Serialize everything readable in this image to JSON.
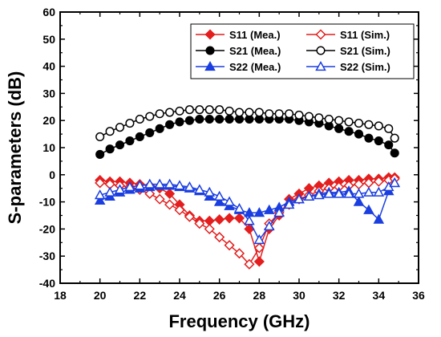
{
  "chart_data": {
    "type": "line",
    "xlabel": "Frequency (GHz)",
    "ylabel": "S-parameters (dB)",
    "xlim": [
      18,
      36
    ],
    "ylim": [
      -40,
      60
    ],
    "x_ticks": [
      "18",
      "20",
      "22",
      "24",
      "26",
      "28",
      "30",
      "32",
      "34",
      "36"
    ],
    "y_ticks": [
      "-40",
      "-30",
      "-20",
      "-10",
      "0",
      "10",
      "20",
      "30",
      "40",
      "50",
      "60"
    ],
    "legend_position": "top-right",
    "grid": false,
    "series": [
      {
        "name": "S11 (Mea.)",
        "color": "#e41e1e",
        "marker": "diamond",
        "filled": true,
        "points": [
          [
            20,
            -2
          ],
          [
            20.5,
            -2.5
          ],
          [
            21,
            -2.5
          ],
          [
            21.5,
            -3
          ],
          [
            22,
            -3.5
          ],
          [
            22.5,
            -4
          ],
          [
            23,
            -5
          ],
          [
            23.5,
            -7
          ],
          [
            24,
            -11
          ],
          [
            24.5,
            -15
          ],
          [
            25,
            -17
          ],
          [
            25.5,
            -17
          ],
          [
            26,
            -16.5
          ],
          [
            26.5,
            -16
          ],
          [
            27,
            -16
          ],
          [
            27.5,
            -20
          ],
          [
            28,
            -32
          ],
          [
            28.5,
            -20
          ],
          [
            29,
            -15
          ],
          [
            29.5,
            -9
          ],
          [
            30,
            -7
          ],
          [
            30.5,
            -5
          ],
          [
            31,
            -4
          ],
          [
            31.5,
            -3
          ],
          [
            32,
            -2.5
          ],
          [
            32.5,
            -2
          ],
          [
            33,
            -2
          ],
          [
            33.5,
            -1.5
          ],
          [
            34,
            -1.5
          ],
          [
            34.5,
            -1
          ],
          [
            34.8,
            -1
          ]
        ]
      },
      {
        "name": "S11 (Sim.)",
        "color": "#e41e1e",
        "marker": "diamond",
        "filled": false,
        "points": [
          [
            20,
            -3
          ],
          [
            20.5,
            -3.5
          ],
          [
            21,
            -4
          ],
          [
            21.5,
            -4.5
          ],
          [
            22,
            -5.5
          ],
          [
            22.5,
            -7
          ],
          [
            23,
            -9
          ],
          [
            23.5,
            -11
          ],
          [
            24,
            -13
          ],
          [
            24.5,
            -15.5
          ],
          [
            25,
            -18
          ],
          [
            25.5,
            -20
          ],
          [
            26,
            -23
          ],
          [
            26.5,
            -26
          ],
          [
            27,
            -29
          ],
          [
            27.5,
            -33
          ],
          [
            28,
            -27
          ],
          [
            28.5,
            -18
          ],
          [
            29,
            -14
          ],
          [
            29.5,
            -11
          ],
          [
            30,
            -9
          ],
          [
            30.5,
            -7.5
          ],
          [
            31,
            -6
          ],
          [
            31.5,
            -5
          ],
          [
            32,
            -4.5
          ],
          [
            32.5,
            -4
          ],
          [
            33,
            -3.5
          ],
          [
            33.5,
            -3
          ],
          [
            34,
            -2.5
          ],
          [
            34.5,
            -2
          ],
          [
            34.8,
            -1.5
          ]
        ]
      },
      {
        "name": "S21 (Mea.)",
        "color": "#000000",
        "marker": "circle",
        "filled": true,
        "points": [
          [
            20,
            7.5
          ],
          [
            20.5,
            9.5
          ],
          [
            21,
            11
          ],
          [
            21.5,
            12.5
          ],
          [
            22,
            14
          ],
          [
            22.5,
            15.5
          ],
          [
            23,
            17
          ],
          [
            23.5,
            18.5
          ],
          [
            24,
            19.5
          ],
          [
            24.5,
            20
          ],
          [
            25,
            20.5
          ],
          [
            25.5,
            20.5
          ],
          [
            26,
            20.5
          ],
          [
            26.5,
            20.5
          ],
          [
            27,
            20.5
          ],
          [
            27.5,
            20.5
          ],
          [
            28,
            20.5
          ],
          [
            28.5,
            20.5
          ],
          [
            29,
            20.5
          ],
          [
            29.5,
            20.5
          ],
          [
            30,
            20
          ],
          [
            30.5,
            19.5
          ],
          [
            31,
            19
          ],
          [
            31.5,
            18
          ],
          [
            32,
            17
          ],
          [
            32.5,
            16
          ],
          [
            33,
            15
          ],
          [
            33.5,
            13.5
          ],
          [
            34,
            12.5
          ],
          [
            34.5,
            11
          ],
          [
            34.8,
            8
          ]
        ]
      },
      {
        "name": "S21 (Sim.)",
        "color": "#000000",
        "marker": "circle",
        "filled": false,
        "points": [
          [
            20,
            14
          ],
          [
            20.5,
            16
          ],
          [
            21,
            17.5
          ],
          [
            21.5,
            19
          ],
          [
            22,
            20.5
          ],
          [
            22.5,
            21.5
          ],
          [
            23,
            22.5
          ],
          [
            23.5,
            23
          ],
          [
            24,
            23.5
          ],
          [
            24.5,
            24
          ],
          [
            25,
            24
          ],
          [
            25.5,
            24
          ],
          [
            26,
            24
          ],
          [
            26.5,
            23.5
          ],
          [
            27,
            23
          ],
          [
            27.5,
            23
          ],
          [
            28,
            23
          ],
          [
            28.5,
            22.5
          ],
          [
            29,
            22.5
          ],
          [
            29.5,
            22.5
          ],
          [
            30,
            22
          ],
          [
            30.5,
            21.5
          ],
          [
            31,
            21
          ],
          [
            31.5,
            20.5
          ],
          [
            32,
            20
          ],
          [
            32.5,
            19.5
          ],
          [
            33,
            19
          ],
          [
            33.5,
            18.5
          ],
          [
            34,
            18
          ],
          [
            34.5,
            17
          ],
          [
            34.8,
            13.5
          ]
        ]
      },
      {
        "name": "S22 (Mea.)",
        "color": "#1a3ee0",
        "marker": "triangle",
        "filled": true,
        "points": [
          [
            20,
            -9.5
          ],
          [
            20.5,
            -8
          ],
          [
            21,
            -6.5
          ],
          [
            21.5,
            -5.5
          ],
          [
            22,
            -5
          ],
          [
            22.5,
            -4.5
          ],
          [
            23,
            -4
          ],
          [
            23.5,
            -4
          ],
          [
            24,
            -4.5
          ],
          [
            24.5,
            -5
          ],
          [
            25,
            -6
          ],
          [
            25.5,
            -8
          ],
          [
            26,
            -10
          ],
          [
            26.5,
            -11.5
          ],
          [
            27,
            -13
          ],
          [
            27.5,
            -14
          ],
          [
            28,
            -14
          ],
          [
            28.5,
            -13
          ],
          [
            29,
            -12
          ],
          [
            29.5,
            -10
          ],
          [
            30,
            -9
          ],
          [
            30.5,
            -8
          ],
          [
            31,
            -7
          ],
          [
            31.5,
            -6.5
          ],
          [
            32,
            -6.5
          ],
          [
            32.5,
            -6
          ],
          [
            33,
            -10
          ],
          [
            33.5,
            -13
          ],
          [
            34,
            -16.5
          ],
          [
            34.5,
            -6
          ],
          [
            34.8,
            -3
          ]
        ]
      },
      {
        "name": "S22 (Sim.)",
        "color": "#1a3ee0",
        "marker": "triangle",
        "filled": false,
        "points": [
          [
            20,
            -7.5
          ],
          [
            20.5,
            -6.5
          ],
          [
            21,
            -5.5
          ],
          [
            21.5,
            -4.5
          ],
          [
            22,
            -4
          ],
          [
            22.5,
            -3.5
          ],
          [
            23,
            -3.5
          ],
          [
            23.5,
            -3.5
          ],
          [
            24,
            -4
          ],
          [
            24.5,
            -4.5
          ],
          [
            25,
            -5.5
          ],
          [
            25.5,
            -6.5
          ],
          [
            26,
            -8
          ],
          [
            26.5,
            -10
          ],
          [
            27,
            -12.5
          ],
          [
            27.5,
            -17
          ],
          [
            28,
            -24
          ],
          [
            28.5,
            -19
          ],
          [
            29,
            -14
          ],
          [
            29.5,
            -11
          ],
          [
            30,
            -9
          ],
          [
            30.5,
            -8
          ],
          [
            31,
            -7.5
          ],
          [
            31.5,
            -7
          ],
          [
            32,
            -7
          ],
          [
            32.5,
            -7
          ],
          [
            33,
            -7
          ],
          [
            33.5,
            -6.5
          ],
          [
            34,
            -6.5
          ],
          [
            34.5,
            -4.5
          ],
          [
            34.8,
            -3
          ]
        ]
      }
    ]
  }
}
